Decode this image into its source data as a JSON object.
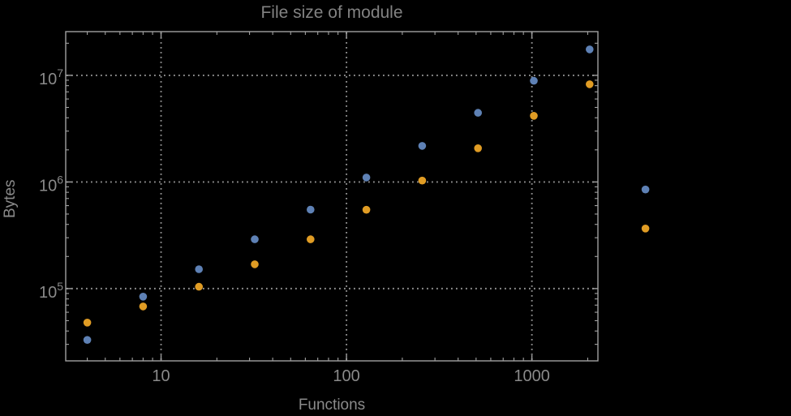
{
  "chart_data": {
    "type": "scatter",
    "title": "File size of module",
    "xlabel": "Functions",
    "ylabel": "Bytes",
    "x_scale": "log",
    "y_scale": "log",
    "grid": "dotted gridlines at decade ticks only",
    "legend": "none",
    "xlim": [
      3.06,
      2270
    ],
    "ylim": [
      21000,
      25700000
    ],
    "x_ticks": [
      {
        "value": 10,
        "label": "10"
      },
      {
        "value": 100,
        "label": "100"
      },
      {
        "value": 1000,
        "label": "1000"
      }
    ],
    "y_ticks": [
      {
        "value": 100000,
        "base": "10",
        "exp": "5"
      },
      {
        "value": 1000000,
        "base": "10",
        "exp": "6"
      },
      {
        "value": 10000000,
        "base": "10",
        "exp": "7"
      }
    ],
    "x": [
      4,
      8,
      16,
      32,
      64,
      128,
      256,
      512,
      1024,
      2048,
      4096
    ],
    "series": [
      {
        "name": "blue",
        "color": "#5E81B5",
        "y": [
          33000,
          84000,
          152000,
          290000,
          550000,
          1100000,
          2180000,
          4450000,
          8900000,
          17500000,
          850000
        ]
      },
      {
        "name": "orange",
        "color": "#E09C24",
        "y": [
          48000,
          68000,
          104000,
          169000,
          290000,
          548000,
          1030000,
          2070000,
          4170000,
          8250000,
          366000
        ]
      }
    ],
    "colors": {
      "background": "#000000",
      "frame": "#a1a1a1",
      "grid": "#949494",
      "text": "#8a8a8a"
    }
  }
}
